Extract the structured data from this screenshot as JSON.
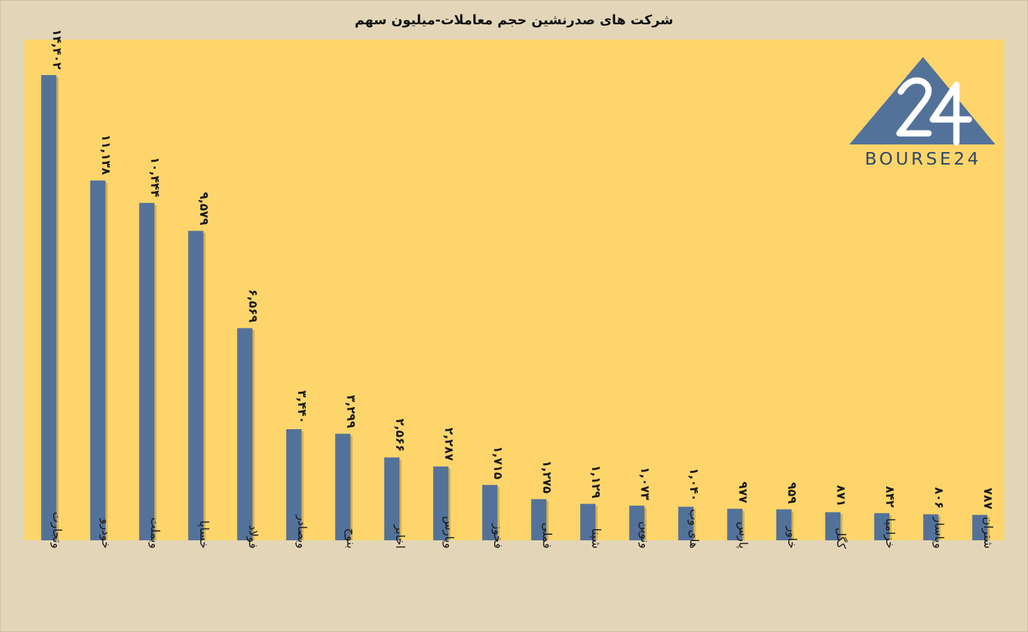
{
  "chart_data": {
    "type": "bar",
    "title": "شرکت های صدرنشین حجم معاملات-میلیون سهم",
    "xlabel": "",
    "ylabel": "",
    "ylim": [
      0,
      15500
    ],
    "grid": false,
    "categories": [
      "وتجارت",
      "خودرو",
      "وبملت",
      "خساپا",
      "فولاد",
      "وبصادر",
      "بنوح",
      "اخابر",
      "وپارس",
      "فخوز",
      "فملی",
      "شپنا",
      "ونوین",
      "های وب",
      "پارس",
      "خاور",
      "کگل",
      "خزامیا",
      "وپاسار",
      "شتران"
    ],
    "values": [
      14402,
      11138,
      10444,
      9579,
      6569,
      3440,
      3299,
      2566,
      2287,
      1715,
      1275,
      1129,
      1073,
      1040,
      977,
      959,
      871,
      842,
      806,
      787
    ],
    "value_labels": [
      "۱۴,۴۰۲",
      "۱۱,۱۳۸",
      "۱۰,۴۴۴",
      "۹,۵۷۹",
      "۶,۵۶۹",
      "۳,۴۴۰",
      "۳,۲۹۹",
      "۲,۵۶۶",
      "۲,۲۸۷",
      "۱,۷۱۵",
      "۱,۲۷۵",
      "۱,۱۲۹",
      "۱,۰۷۳",
      "۱,۰۴۰",
      "۹۷۷",
      "۹۵۹",
      "۸۷۱",
      "۸۴۲",
      "۸۰۶",
      "۷۸۷"
    ],
    "bar_color": "#53729a",
    "plot_background": "#fdd56b"
  },
  "logo": {
    "number": "24",
    "text": "BOURSE24",
    "color": "#53729a"
  }
}
